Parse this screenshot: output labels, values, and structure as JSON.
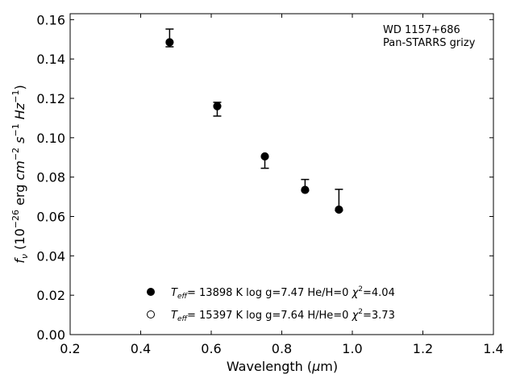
{
  "chart_data": {
    "type": "scatter",
    "title": "",
    "xlabel": "Wavelength (μm)",
    "ylabel": "f_ν (10^-26 erg cm^-2 s^-1 Hz^-1)",
    "xlim": [
      0.2,
      1.4
    ],
    "ylim": [
      0.0,
      0.163
    ],
    "x_ticks": [
      0.2,
      0.4,
      0.6,
      0.8,
      1.0,
      1.2,
      1.4
    ],
    "x_tick_labels": [
      "0.2",
      "0.4",
      "0.6",
      "0.8",
      "1.0",
      "1.2",
      "1.4"
    ],
    "y_ticks": [
      0.0,
      0.02,
      0.04,
      0.06,
      0.08,
      0.1,
      0.12,
      0.14,
      0.16
    ],
    "y_tick_labels": [
      "0.00",
      "0.02",
      "0.04",
      "0.06",
      "0.08",
      "0.10",
      "0.12",
      "0.14",
      "0.16"
    ],
    "grid": false,
    "annotation": {
      "line1": "WD 1157+686",
      "line2": "Pan-STARRS grizy"
    },
    "observed": {
      "x": [
        0.482,
        0.617,
        0.752,
        0.866,
        0.962
      ],
      "y": [
        0.149,
        0.1155,
        0.0885,
        0.0745,
        0.0635
      ],
      "yerr_low": [
        0.0028,
        0.0045,
        0.004,
        0.0015,
        0.0005
      ],
      "yerr_high": [
        0.0062,
        0.0025,
        0.002,
        0.0043,
        0.0103
      ]
    },
    "series": [
      {
        "name": "T_eff= 13898 K  log g=7.47  He/H=0  χ²=4.04",
        "marker": "filled-circle",
        "x": [
          0.482,
          0.617,
          0.752,
          0.866,
          0.962
        ],
        "y": [
          0.1485,
          0.116,
          0.0905,
          0.0735,
          0.0635
        ]
      },
      {
        "name": "T_eff= 15397 K  log g=7.64  H/He=0  χ²=3.73",
        "marker": "open-circle",
        "x": [
          0.482,
          0.617,
          0.752,
          0.866,
          0.962
        ],
        "y": [
          0.1485,
          0.116,
          0.0905,
          0.0735,
          0.0635
        ]
      }
    ],
    "legend_position": "bottom-center"
  }
}
